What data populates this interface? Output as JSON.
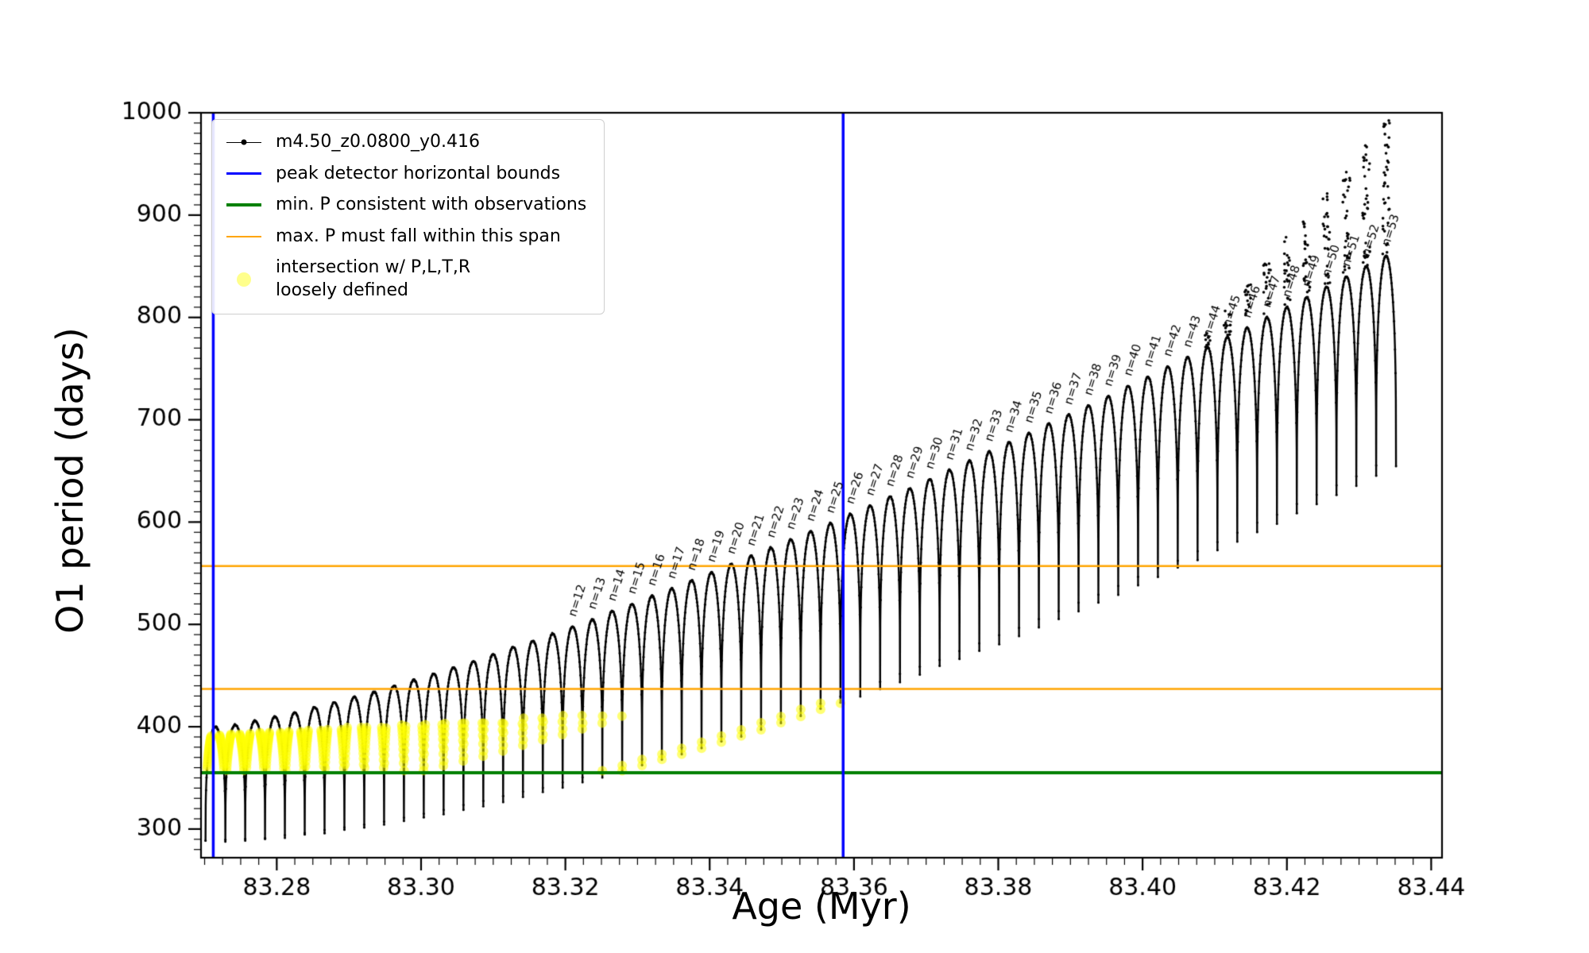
{
  "chart_data": {
    "type": "line",
    "title": "",
    "xlabel": "Age (Myr)",
    "ylabel": "O1 period (days)",
    "xlim": [
      83.2695,
      83.4415
    ],
    "ylim": [
      272,
      1000
    ],
    "x_major_ticks": [
      83.28,
      83.3,
      83.32,
      83.34,
      83.36,
      83.38,
      83.4,
      83.42,
      83.44
    ],
    "x_tick_decimals": 2,
    "x_minor_step": 0.0025,
    "y_major_ticks": [
      300,
      400,
      500,
      600,
      700,
      800,
      900,
      1000
    ],
    "y_minor_step": 10,
    "series": {
      "label": "m4.50_z0.0800_y0.416",
      "color": "#000000",
      "teeth_x_start": 83.2715,
      "teeth_x_spacing": 0.00275,
      "teeth_count": 60,
      "peaks": [
        400,
        402,
        406,
        410,
        414,
        419,
        424,
        429,
        434,
        440,
        446,
        452,
        458,
        464,
        471,
        478,
        484,
        491,
        498,
        505,
        513,
        520,
        528,
        535,
        543,
        551,
        559,
        567,
        575,
        583,
        591,
        599,
        608,
        616,
        625,
        633,
        642,
        651,
        660,
        669,
        678,
        687,
        696,
        705,
        714,
        723,
        733,
        742,
        752,
        761,
        771,
        781,
        790,
        800,
        810,
        820,
        830,
        840,
        850,
        860
      ],
      "valleys": [
        288,
        289,
        290,
        292,
        294,
        296,
        299,
        301,
        305,
        308,
        311,
        315,
        319,
        323,
        327,
        332,
        337,
        341,
        346,
        351,
        357,
        362,
        368,
        373,
        379,
        385,
        391,
        397,
        404,
        410,
        417,
        423,
        430,
        437,
        444,
        451,
        459,
        466,
        474,
        481,
        489,
        497,
        505,
        513,
        521,
        529,
        538,
        546,
        555,
        563,
        572,
        581,
        590,
        599,
        608,
        617,
        626,
        636,
        645,
        655
      ],
      "scatter_columns": {
        "first_tooth": 50,
        "extra_per_tooth": 14
      }
    },
    "peak_labels": {
      "first_tooth": 18,
      "labels": [
        "n=12",
        "n=13",
        "n=14",
        "n=15",
        "n=16",
        "n=17",
        "n=18",
        "n=19",
        "n=20",
        "n=21",
        "n=22",
        "n=23",
        "n=24",
        "n=25",
        "n=26",
        "n=27",
        "n=28",
        "n=29",
        "n=30",
        "n=31",
        "n=32",
        "n=33",
        "n=34",
        "n=35",
        "n=36",
        "n=37",
        "n=38",
        "n=39",
        "n=40",
        "n=41",
        "n=42",
        "n=43",
        "n=44",
        "n=45",
        "n=46",
        "n=47",
        "n=48",
        "n=49",
        "n=50",
        "n=51",
        "n=52",
        "n=53"
      ]
    },
    "guides": {
      "peak_detector_bounds_x": [
        83.2712,
        83.3585
      ],
      "bounds_color": "#0000ff",
      "min_P_y": 355,
      "min_color": "#008000",
      "max_P_span_y": [
        437,
        557
      ],
      "span_color": "#ffa500"
    },
    "highlight": {
      "color": "#ffff00",
      "x_end": 83.3585,
      "y_min": 357,
      "y_max_at_start": 392,
      "y_max_at_end": 427
    }
  },
  "legend": {
    "items": [
      {
        "label": "m4.50_z0.0800_y0.416",
        "label2": "",
        "marker": "line-dot",
        "color": "#000000",
        "lw": 1.5
      },
      {
        "label": "peak detector horizontal bounds",
        "label2": "",
        "marker": "line",
        "color": "#0000ff",
        "lw": 3.5
      },
      {
        "label": "min. P consistent with observations",
        "label2": "",
        "marker": "line",
        "color": "#008000",
        "lw": 4
      },
      {
        "label": "max. P must fall within this span",
        "label2": "",
        "marker": "line",
        "color": "#ffa500",
        "lw": 2.5
      },
      {
        "label": "intersection w/ P,L,T,R",
        "label2": "loosely defined",
        "marker": "dot",
        "color": "#ffff00",
        "lw": 0
      }
    ]
  }
}
